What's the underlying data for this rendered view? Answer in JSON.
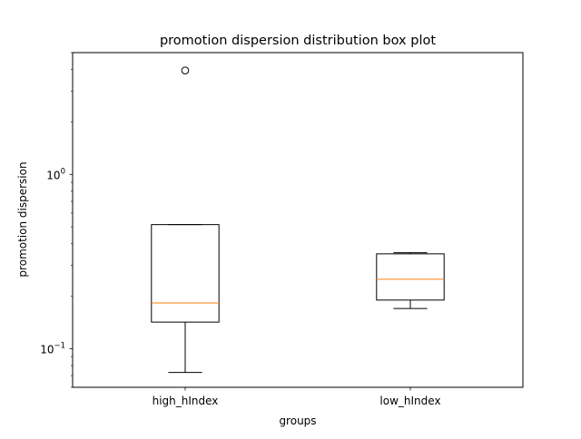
{
  "chart_data": {
    "type": "box",
    "title": "promotion dispersion distribution box plot",
    "xlabel": "groups",
    "ylabel": "promotion dispersion",
    "yscale": "log",
    "ylim": [
      0.06,
      5.0
    ],
    "y_ticks": [
      {
        "value": 1.0,
        "base": "10",
        "exp": "0"
      },
      {
        "value": 0.1,
        "base": "10",
        "exp": "−1"
      }
    ],
    "categories": [
      "high_hIndex",
      "low_hIndex"
    ],
    "boxes": [
      {
        "name": "high_hIndex",
        "whisker_low": 0.073,
        "q1": 0.142,
        "median": 0.183,
        "q3": 0.515,
        "whisker_high": 0.515,
        "outliers": [
          3.95
        ]
      },
      {
        "name": "low_hIndex",
        "whisker_low": 0.17,
        "q1": 0.19,
        "median": 0.25,
        "q3": 0.35,
        "whisker_high": 0.355,
        "outliers": []
      }
    ],
    "colors": {
      "box": "#000000",
      "median": "#ff7f0e",
      "outlier": "#000000"
    }
  }
}
